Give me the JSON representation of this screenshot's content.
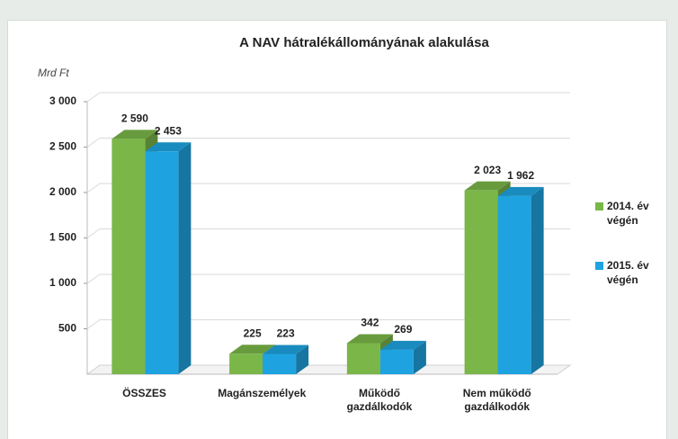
{
  "chart_data": {
    "type": "bar3d",
    "title": "A NAV hátralékállományának alakulása",
    "y_label": "Mrd Ft",
    "categories": [
      "ÖSSZES",
      "Magánszemélyek",
      "Működő gazdálkodók",
      "Nem működő gazdálkodók"
    ],
    "series": [
      {
        "name": "2014. év végén",
        "color": "#7ab648",
        "values": [
          2590,
          225,
          342,
          2023
        ],
        "value_labels": [
          "2 590",
          "225",
          "342",
          "2 023"
        ]
      },
      {
        "name": "2015. év végén",
        "color": "#1fa3e0",
        "values": [
          2453,
          223,
          269,
          1962
        ],
        "value_labels": [
          "2 453",
          "223",
          "269",
          "1 962"
        ]
      }
    ],
    "ylim": [
      0,
      3000
    ],
    "yticks": [
      500,
      {
        "value": 1000,
        "label": "1 000"
      },
      {
        "value": 1500,
        "label": "1 500"
      },
      {
        "value": 2000,
        "label": "2 000"
      },
      {
        "value": 2500,
        "label": "2 500"
      },
      {
        "value": 3000,
        "label": "3 000"
      }
    ],
    "grid": true,
    "legend": "right"
  }
}
